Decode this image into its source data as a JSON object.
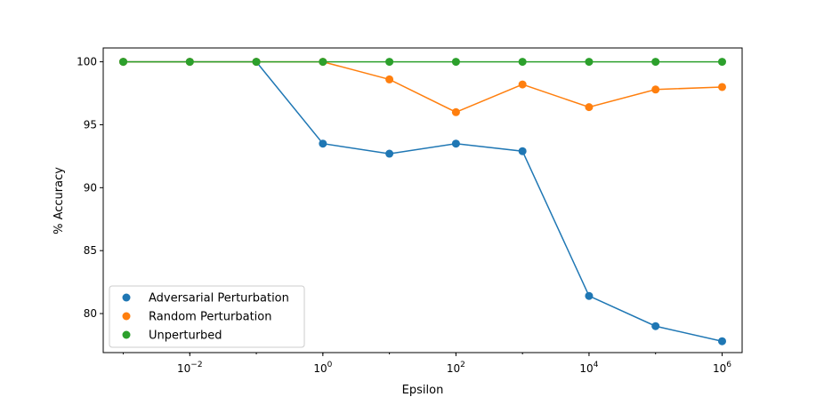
{
  "chart_data": {
    "type": "line",
    "title": "",
    "xlabel": "Epsilon",
    "ylabel": "% Accuracy",
    "xscale": "log",
    "x": [
      0.001,
      0.01,
      0.1,
      1,
      10,
      100,
      1000,
      10000,
      100000,
      1000000
    ],
    "xlim": [
      0.0005,
      2000000
    ],
    "ylim": [
      76.9,
      101.1
    ],
    "x_tick_exponents": [
      "-2",
      "0",
      "2",
      "4",
      "6"
    ],
    "x_tick_base": "10",
    "y_ticks": [
      80,
      85,
      90,
      95,
      100
    ],
    "grid": false,
    "legend_position": "lower-left",
    "series": [
      {
        "name": "Adversarial Perturbation",
        "color": "#1f77b4",
        "values": [
          100,
          100,
          100,
          93.5,
          92.7,
          93.5,
          92.9,
          81.4,
          79.0,
          77.8
        ]
      },
      {
        "name": "Random Perturbation",
        "color": "#ff7f0e",
        "values": [
          100,
          100,
          100,
          100,
          98.6,
          96.0,
          98.2,
          96.4,
          97.8,
          98.0
        ]
      },
      {
        "name": "Unperturbed",
        "color": "#2ca02c",
        "values": [
          100,
          100,
          100,
          100,
          100,
          100,
          100,
          100,
          100,
          100
        ]
      }
    ]
  }
}
